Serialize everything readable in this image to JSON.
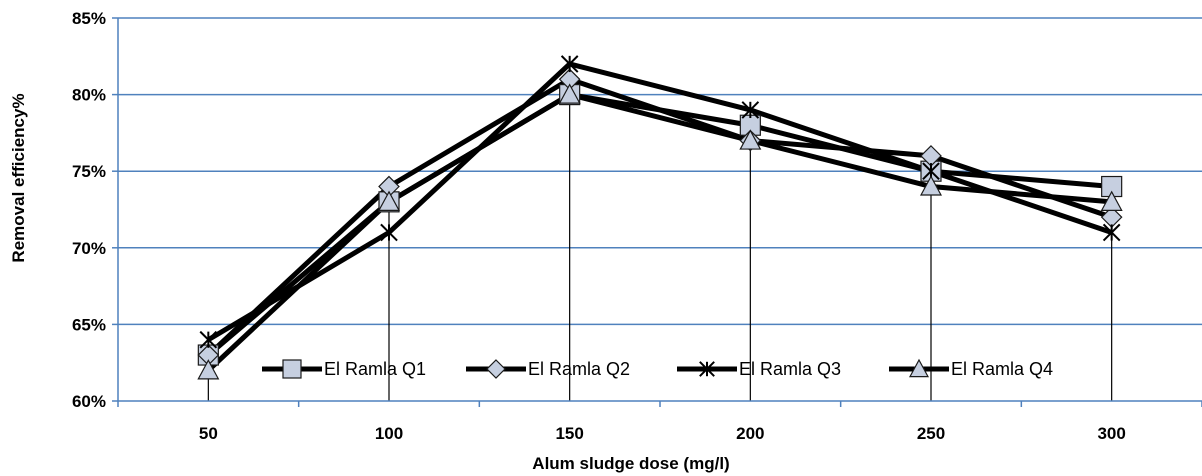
{
  "chart_data": {
    "type": "line",
    "title": "",
    "xlabel": "Alum sludge dose (mg/l)",
    "ylabel": "Removal efficiency%",
    "categories": [
      "50",
      "100",
      "150",
      "200",
      "250",
      "300"
    ],
    "y_tick_labels": [
      "60%",
      "65%",
      "70%",
      "75%",
      "80%",
      "85%"
    ],
    "ylim": [
      60,
      85
    ],
    "grid": "horizontal",
    "drop_lines": true,
    "legend_position": "bottom-inside",
    "series": [
      {
        "name": "El Ramla Q1",
        "marker": "square",
        "values": [
          63,
          73,
          80,
          78,
          75,
          74
        ]
      },
      {
        "name": "El Ramla Q2",
        "marker": "diamond",
        "values": [
          63,
          74,
          81,
          77,
          76,
          72
        ]
      },
      {
        "name": "El Ramla Q3",
        "marker": "star",
        "values": [
          64,
          71,
          82,
          79,
          75,
          71
        ]
      },
      {
        "name": "El Ramla Q4",
        "marker": "triangle",
        "values": [
          62,
          73,
          80,
          77,
          74,
          73
        ]
      }
    ],
    "colors": {
      "grid": "#4f81bd",
      "line": "#000000",
      "marker_fill": "#c6cfe0"
    }
  }
}
